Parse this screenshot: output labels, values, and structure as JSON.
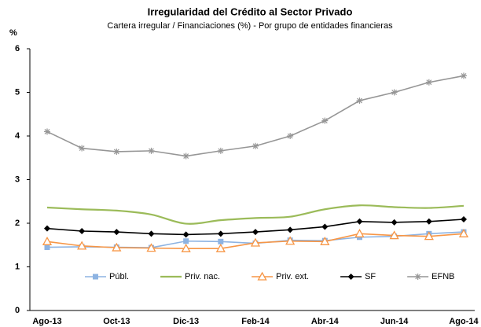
{
  "chart_data": {
    "type": "line",
    "title": "Irregularidad del Crédito al Sector Privado",
    "subtitle": "Cartera irregular / Financiaciones (%) - Por grupo de entidades financieras",
    "y_label": "%",
    "categories": [
      "Ago-13",
      null,
      "Oct-13",
      null,
      "Dic-13",
      null,
      "Feb-14",
      null,
      "Abr-14",
      null,
      "Jun-14",
      null,
      "Ago-14"
    ],
    "ylim": [
      0,
      6
    ],
    "yticks": [
      0,
      1,
      2,
      3,
      4,
      5,
      6
    ],
    "grid": false,
    "legend": "bottom",
    "series": [
      {
        "name": "Públ.",
        "color": "#8db3e2",
        "marker": "square",
        "smooth": false,
        "values": [
          1.45,
          1.46,
          1.45,
          1.44,
          1.59,
          1.58,
          1.54,
          1.61,
          1.6,
          1.68,
          1.7,
          1.76,
          1.8
        ]
      },
      {
        "name": "Priv. nac.",
        "color": "#9bbb59",
        "marker": "none",
        "smooth": true,
        "values": [
          2.36,
          2.32,
          2.29,
          2.2,
          1.99,
          2.07,
          2.12,
          2.15,
          2.32,
          2.41,
          2.37,
          2.35,
          2.4
        ]
      },
      {
        "name": "Priv. ext.",
        "color": "#f79646",
        "marker": "triangle",
        "smooth": false,
        "values": [
          1.58,
          1.48,
          1.44,
          1.43,
          1.42,
          1.42,
          1.55,
          1.59,
          1.58,
          1.76,
          1.72,
          1.7,
          1.76
        ]
      },
      {
        "name": "SF",
        "color": "#000000",
        "marker": "diamond",
        "smooth": false,
        "values": [
          1.88,
          1.82,
          1.8,
          1.76,
          1.74,
          1.76,
          1.8,
          1.85,
          1.92,
          2.04,
          2.02,
          2.04,
          2.09
        ]
      },
      {
        "name": "EFNB",
        "color": "#969696",
        "marker": "star",
        "smooth": false,
        "values": [
          4.1,
          3.72,
          3.64,
          3.66,
          3.54,
          3.66,
          3.77,
          4.0,
          4.35,
          4.81,
          5.0,
          5.23,
          5.38
        ]
      }
    ]
  }
}
